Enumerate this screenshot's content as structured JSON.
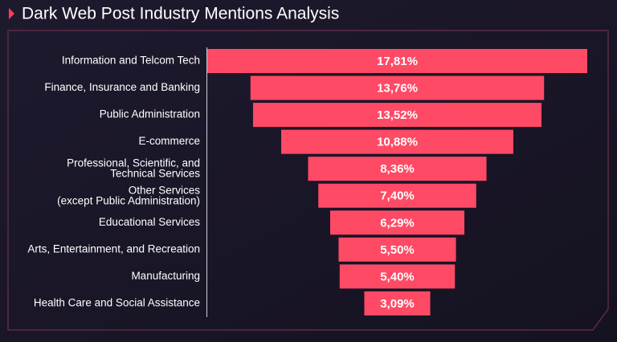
{
  "chart_data": {
    "type": "funnel",
    "title": "Dark Web Post Industry Mentions Analysis",
    "categories": [
      "Information and Telcom Tech",
      "Finance, Insurance and Banking",
      "Public Administration",
      "E-commerce",
      "Professional, Scientific, and\nTechnical Services",
      "Other Services\n(except Public Administration)",
      "Educational Services",
      "Arts, Entertainment, and Recreation",
      "Manufacturing",
      "Health Care and Social Assistance"
    ],
    "values": [
      17.81,
      13.76,
      13.52,
      10.88,
      8.36,
      7.4,
      6.29,
      5.5,
      5.4,
      3.09
    ],
    "value_labels": [
      "17,81%",
      "13,76%",
      "13,52%",
      "10,88%",
      "8,36%",
      "7,40%",
      "6,29%",
      "5,50%",
      "5,40%",
      "3,09%"
    ],
    "color": "#ff4a66"
  }
}
